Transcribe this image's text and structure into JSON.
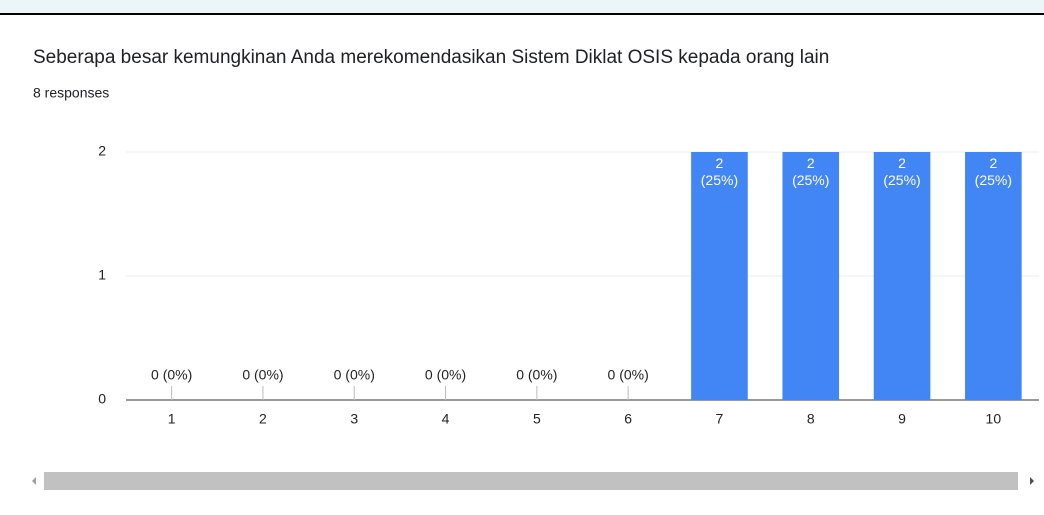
{
  "chart_data": {
    "type": "bar",
    "title": "Seberapa besar kemungkinan Anda merekomendasikan Sistem Diklat OSIS kepada orang lain",
    "subtitle": "8 responses",
    "categories": [
      "1",
      "2",
      "3",
      "4",
      "5",
      "6",
      "7",
      "8",
      "9",
      "10"
    ],
    "values": [
      0,
      0,
      0,
      0,
      0,
      0,
      2,
      2,
      2,
      2
    ],
    "value_labels": [
      "0 (0%)",
      "0 (0%)",
      "0 (0%)",
      "0 (0%)",
      "0 (0%)",
      "0 (0%)",
      "2 (25%)",
      "2 (25%)",
      "2 (25%)",
      "2 (25%)"
    ],
    "color": "#4285f4",
    "ylim": [
      0,
      2
    ],
    "yticks": [
      0,
      1,
      2
    ],
    "grid": true
  }
}
